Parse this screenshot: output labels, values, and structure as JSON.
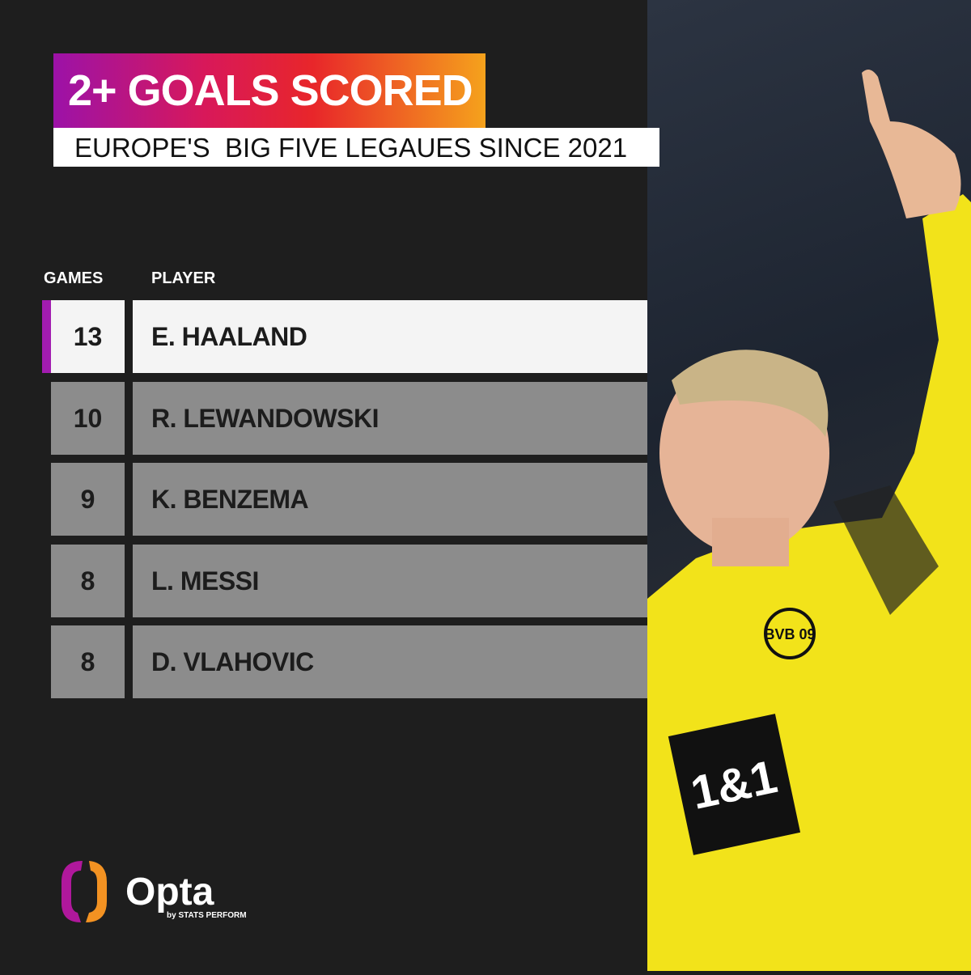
{
  "title": "2+ GOALS SCORED",
  "subtitle": "EUROPE'S  BIG FIVE LEGAUES SINCE 2021",
  "chart_data": {
    "type": "table",
    "columns": [
      "GAMES",
      "PLAYER"
    ],
    "rows": [
      {
        "games": "13",
        "player": "E. HAALAND",
        "highlight": true
      },
      {
        "games": "10",
        "player": "R. LEWANDOWSKI"
      },
      {
        "games": "9",
        "player": "K. BENZEMA"
      },
      {
        "games": "8",
        "player": "L. MESSI"
      },
      {
        "games": "8",
        "player": "D. VLAHOVIC"
      }
    ]
  },
  "brand": {
    "name": "Opta",
    "tagline": "by STATS PERFORM"
  },
  "photo": {
    "jersey_text": "1&1",
    "crest": "BVB 09"
  },
  "colors": {
    "background": "#1e1e1e",
    "highlight_bar": "#a21cb0",
    "row_grey": "#8c8c8c",
    "jersey": "#f2e31a"
  }
}
